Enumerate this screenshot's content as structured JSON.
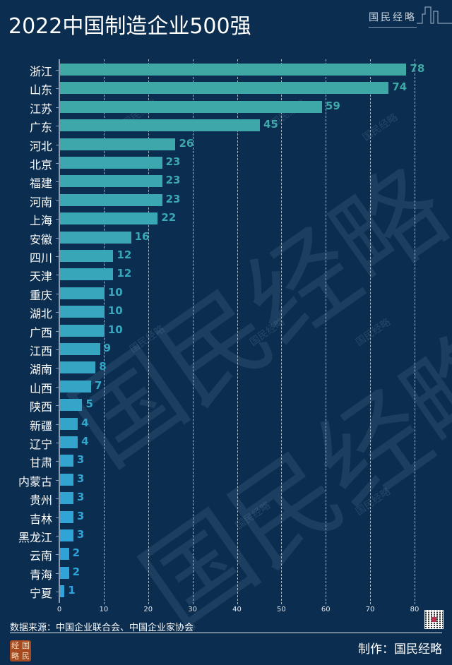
{
  "header": {
    "title": "2022中国制造企业500强",
    "brand": "国民经略"
  },
  "chart_data": {
    "type": "bar",
    "orientation": "horizontal",
    "title": "2022中国制造企业500强",
    "xlabel": "",
    "ylabel": "",
    "xlim": [
      0,
      80
    ],
    "x_ticks": [
      0,
      10,
      20,
      30,
      40,
      50,
      60,
      70,
      80
    ],
    "grid": "vertical dashed",
    "categories": [
      "浙江",
      "山东",
      "江苏",
      "广东",
      "河北",
      "北京",
      "福建",
      "河南",
      "上海",
      "安徽",
      "四川",
      "天津",
      "重庆",
      "湖北",
      "广西",
      "江西",
      "湖南",
      "山西",
      "陕西",
      "新疆",
      "辽宁",
      "甘肃",
      "内蒙古",
      "贵州",
      "吉林",
      "黑龙江",
      "云南",
      "青海",
      "宁夏"
    ],
    "values": [
      78,
      74,
      59,
      45,
      26,
      23,
      23,
      23,
      22,
      16,
      12,
      12,
      10,
      10,
      10,
      9,
      8,
      7,
      5,
      4,
      4,
      3,
      3,
      3,
      3,
      3,
      2,
      2,
      1
    ],
    "colors": {
      "top": "#3fa8a4",
      "bottom": "#2ea3dc"
    }
  },
  "footer": {
    "source": "数据来源：中国企业联合会、中国企业家协会",
    "credit": "制作：国民经略",
    "logo_chars": [
      "经",
      "国",
      "略",
      "民"
    ]
  },
  "watermark": {
    "big": "国民经略",
    "small": "国民经略"
  }
}
